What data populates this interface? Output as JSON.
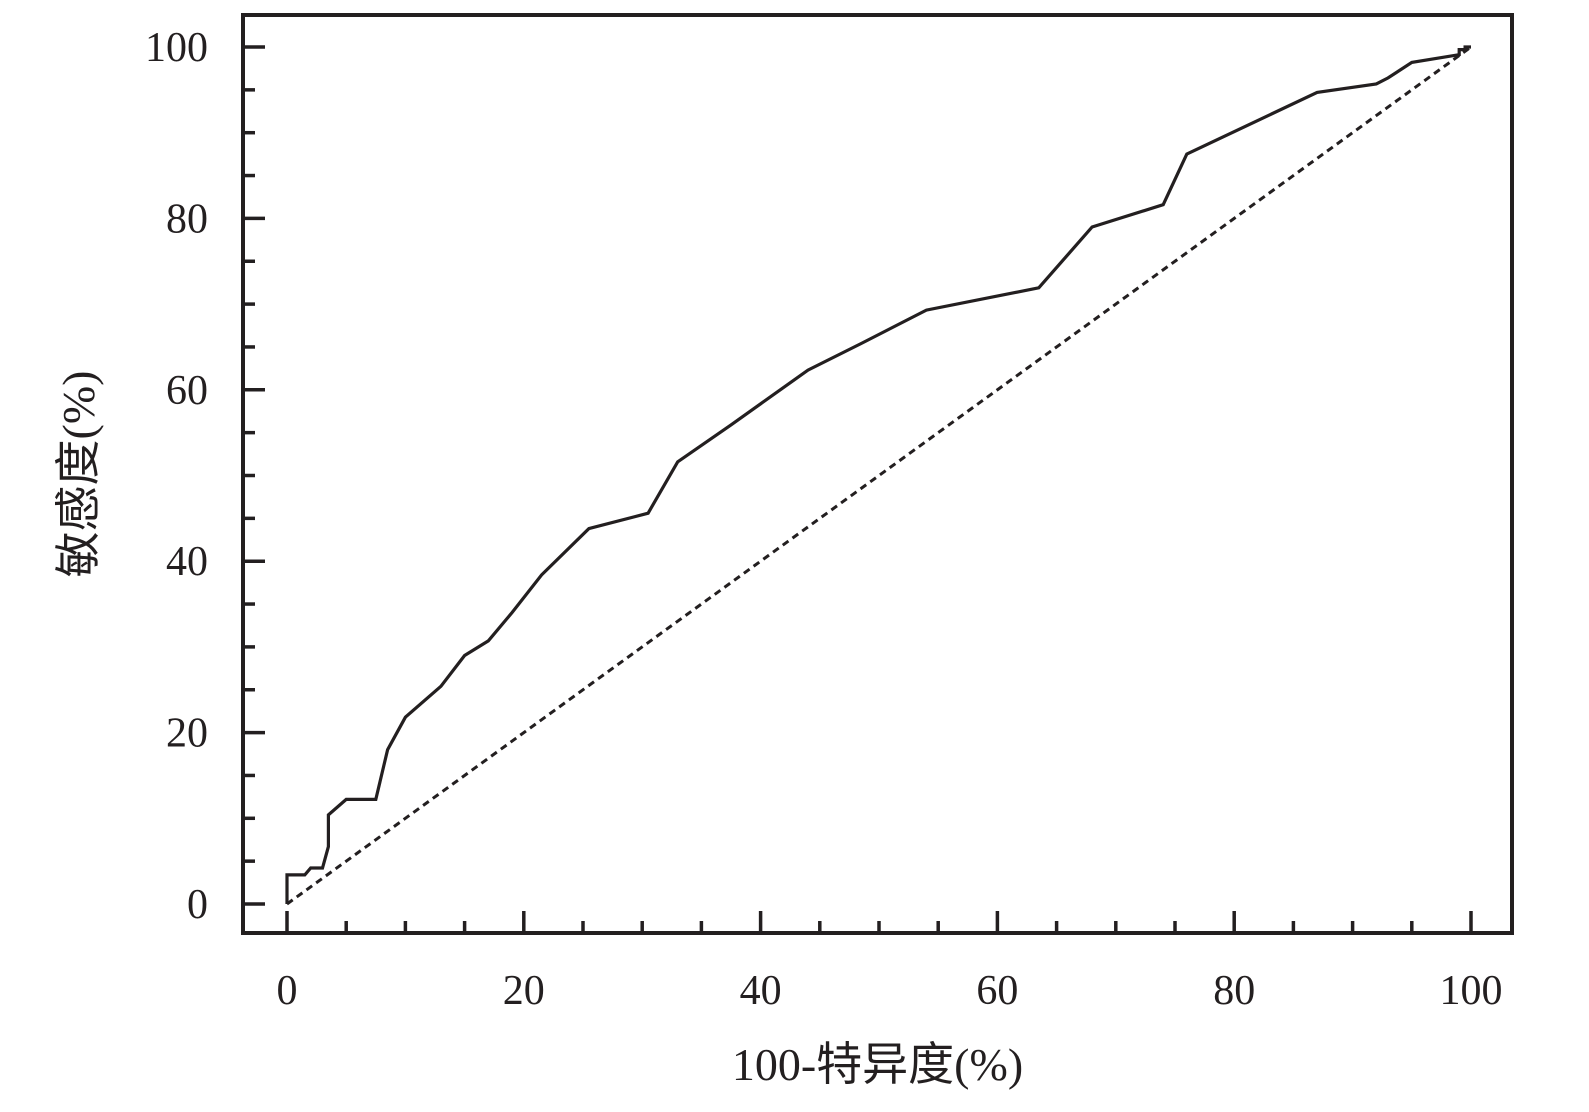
{
  "chart_data": {
    "type": "line",
    "xlabel": "100-特异度(%)",
    "ylabel": "敏感度(%)",
    "xlim": [
      0,
      100
    ],
    "ylim": [
      0,
      100
    ],
    "x_ticks": [
      "0",
      "20",
      "40",
      "60",
      "80",
      "100"
    ],
    "y_ticks": [
      "0",
      "20",
      "40",
      "60",
      "80",
      "100"
    ],
    "grid": false,
    "legend": "none",
    "series": [
      {
        "style": "solid",
        "color": "#231f20",
        "points": [
          [
            0,
            0
          ],
          [
            0,
            3.4
          ],
          [
            1.5,
            3.4
          ],
          [
            2,
            4.2
          ],
          [
            3,
            4.2
          ],
          [
            3.5,
            6.7
          ],
          [
            3.5,
            10.4
          ],
          [
            5,
            12.2
          ],
          [
            7.5,
            12.2
          ],
          [
            8.5,
            18.0
          ],
          [
            10,
            21.8
          ],
          [
            13,
            25.4
          ],
          [
            15,
            29.0
          ],
          [
            17,
            30.7
          ],
          [
            19,
            34.0
          ],
          [
            21.5,
            38.4
          ],
          [
            25.5,
            43.8
          ],
          [
            30.5,
            45.6
          ],
          [
            33,
            51.6
          ],
          [
            37.5,
            55.9
          ],
          [
            44,
            62.3
          ],
          [
            48.5,
            65.4
          ],
          [
            54,
            69.3
          ],
          [
            63.5,
            71.9
          ],
          [
            68,
            79.0
          ],
          [
            74,
            81.6
          ],
          [
            76,
            87.5
          ],
          [
            87,
            94.7
          ],
          [
            92,
            95.7
          ],
          [
            93,
            96.4
          ],
          [
            95,
            98.2
          ],
          [
            99,
            99.1
          ],
          [
            99,
            99.7
          ],
          [
            99.5,
            99.7
          ],
          [
            99.5,
            100
          ],
          [
            100,
            100
          ]
        ]
      },
      {
        "style": "dashed",
        "color": "#231f20",
        "points": [
          [
            0,
            0
          ],
          [
            100,
            100
          ]
        ]
      }
    ]
  }
}
